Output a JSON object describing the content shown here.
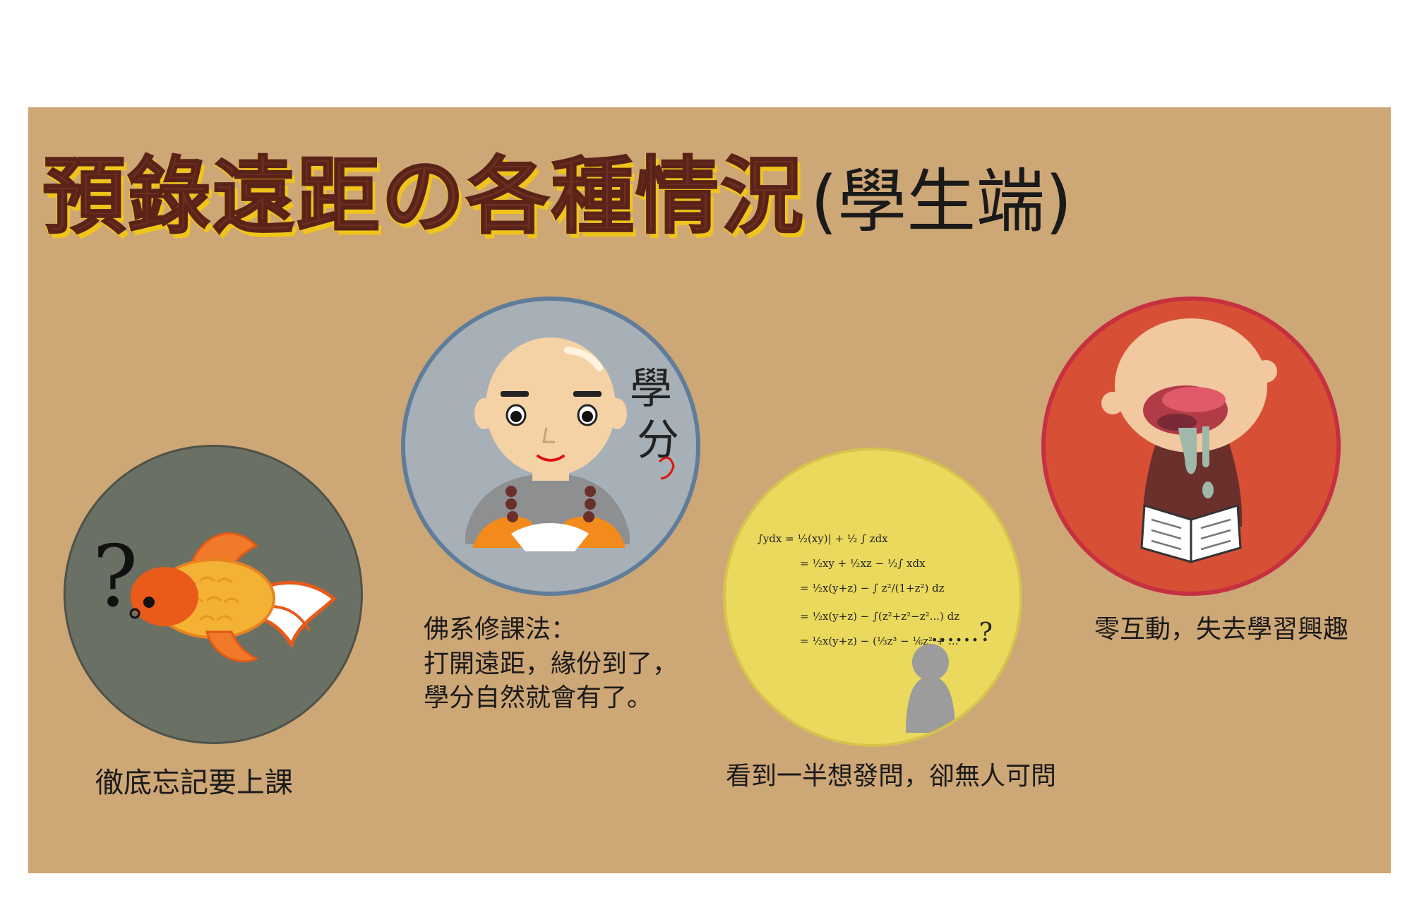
{
  "title": {
    "main": "預錄遠距の各種情況",
    "sub": "(學生端)"
  },
  "scenes": {
    "fish": {
      "caption": "徹底忘記要上課",
      "mark": "?"
    },
    "monk": {
      "caption_1": "佛系修課法：",
      "caption_2": "打開遠距，緣份到了，",
      "caption_3": "學分自然就會有了。",
      "art_text_1": "學",
      "art_text_2": "分"
    },
    "math": {
      "caption": "看到一半想發問，卻無人可問",
      "dots": "......?"
    },
    "baby": {
      "caption": "零互動，失去學習興趣"
    }
  },
  "colors": {
    "board": "#cea776",
    "title": "#6e2e22",
    "title_shadow": "#f0c41b",
    "fish_circle": "#6b7065",
    "monk_circle": "#a7b0b7",
    "math_circle": "#ead95c",
    "baby_circle": "#d75035"
  }
}
